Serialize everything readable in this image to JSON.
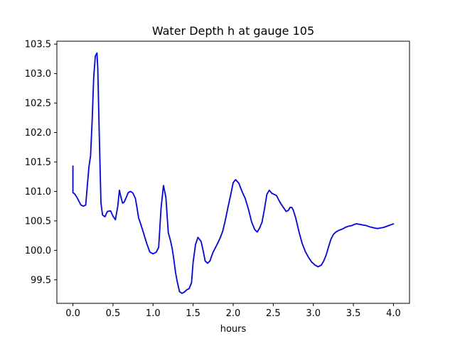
{
  "chart_data": {
    "type": "line",
    "title": "Water Depth h at gauge 105",
    "xlabel": "hours",
    "ylabel": "",
    "xlim": [
      -0.2,
      4.2
    ],
    "ylim": [
      99.1,
      103.55
    ],
    "xticks": [
      "0.0",
      "0.5",
      "1.0",
      "1.5",
      "2.0",
      "2.5",
      "3.0",
      "3.5",
      "4.0"
    ],
    "yticks": [
      "99.5",
      "100.0",
      "100.5",
      "101.0",
      "101.5",
      "102.0",
      "102.5",
      "103.0",
      "103.5"
    ],
    "grid": false,
    "series": [
      {
        "color": "#0000ff",
        "x": [
          0.0,
          0.0,
          0.02,
          0.05,
          0.08,
          0.1,
          0.13,
          0.16,
          0.18,
          0.2,
          0.22,
          0.24,
          0.26,
          0.28,
          0.3,
          0.31,
          0.33,
          0.35,
          0.37,
          0.4,
          0.43,
          0.47,
          0.5,
          0.53,
          0.56,
          0.58,
          0.6,
          0.62,
          0.64,
          0.66,
          0.69,
          0.72,
          0.75,
          0.78,
          0.8,
          0.82,
          0.85,
          0.88,
          0.92,
          0.96,
          1.0,
          1.04,
          1.07,
          1.1,
          1.13,
          1.16,
          1.19,
          1.21,
          1.22,
          1.24,
          1.26,
          1.28,
          1.3,
          1.33,
          1.36,
          1.39,
          1.42,
          1.45,
          1.48,
          1.5,
          1.53,
          1.56,
          1.6,
          1.63,
          1.65,
          1.68,
          1.71,
          1.73,
          1.75,
          1.78,
          1.81,
          1.84,
          1.87,
          1.9,
          1.93,
          1.97,
          2.0,
          2.03,
          2.07,
          2.11,
          2.15,
          2.19,
          2.23,
          2.27,
          2.3,
          2.33,
          2.36,
          2.39,
          2.42,
          2.45,
          2.48,
          2.51,
          2.54,
          2.57,
          2.6,
          2.63,
          2.66,
          2.69,
          2.71,
          2.73,
          2.75,
          2.78,
          2.82,
          2.86,
          2.9,
          2.94,
          2.98,
          3.02,
          3.06,
          3.1,
          3.13,
          3.16,
          3.19,
          3.22,
          3.25,
          3.28,
          3.32,
          3.36,
          3.4,
          3.44,
          3.48,
          3.51,
          3.54,
          3.58,
          3.62,
          3.66,
          3.7,
          3.73,
          3.76,
          3.8,
          3.84,
          3.88,
          3.92,
          3.96,
          4.0
        ],
        "y": [
          101.43,
          100.98,
          100.96,
          100.9,
          100.82,
          100.77,
          100.75,
          100.77,
          101.1,
          101.42,
          101.6,
          102.2,
          102.95,
          103.3,
          103.35,
          103.1,
          101.9,
          100.8,
          100.6,
          100.57,
          100.66,
          100.67,
          100.58,
          100.52,
          100.75,
          101.02,
          100.9,
          100.8,
          100.82,
          100.88,
          100.98,
          101.0,
          100.97,
          100.88,
          100.72,
          100.55,
          100.43,
          100.3,
          100.12,
          99.97,
          99.94,
          99.97,
          100.05,
          100.72,
          101.1,
          100.9,
          100.3,
          100.2,
          100.15,
          100.02,
          99.84,
          99.63,
          99.48,
          99.3,
          99.27,
          99.29,
          99.33,
          99.35,
          99.45,
          99.8,
          100.1,
          100.22,
          100.15,
          99.96,
          99.82,
          99.78,
          99.82,
          99.9,
          99.97,
          100.05,
          100.13,
          100.22,
          100.33,
          100.5,
          100.7,
          100.95,
          101.15,
          101.2,
          101.14,
          101.0,
          100.88,
          100.7,
          100.48,
          100.35,
          100.31,
          100.38,
          100.48,
          100.7,
          100.95,
          101.02,
          100.97,
          100.95,
          100.93,
          100.85,
          100.78,
          100.72,
          100.66,
          100.68,
          100.73,
          100.73,
          100.68,
          100.55,
          100.32,
          100.12,
          99.98,
          99.88,
          99.8,
          99.75,
          99.72,
          99.75,
          99.82,
          99.92,
          100.06,
          100.19,
          100.27,
          100.31,
          100.34,
          100.36,
          100.39,
          100.41,
          100.42,
          100.44,
          100.45,
          100.44,
          100.43,
          100.42,
          100.4,
          100.39,
          100.38,
          100.37,
          100.38,
          100.39,
          100.41,
          100.43,
          100.45
        ]
      }
    ]
  }
}
